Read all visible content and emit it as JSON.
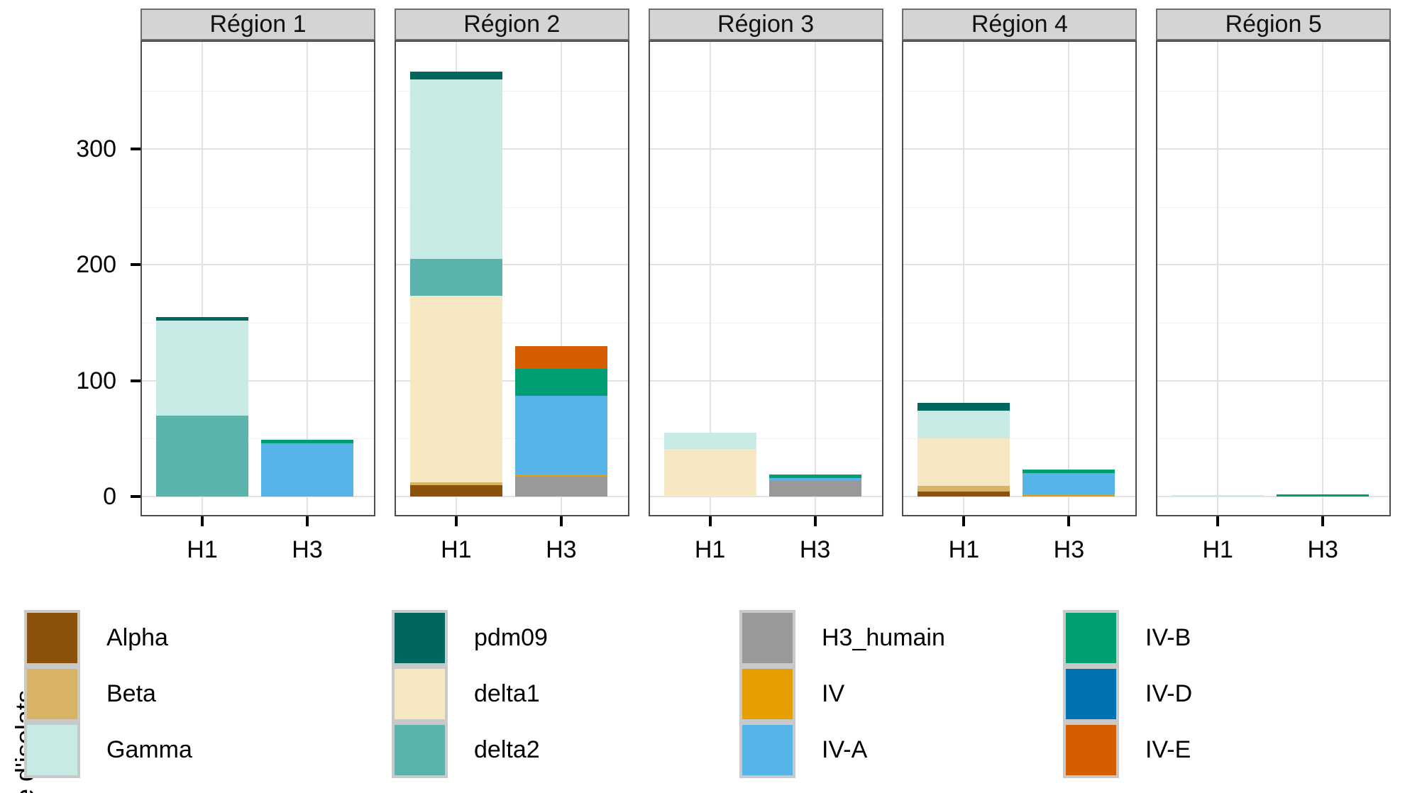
{
  "chart_data": {
    "type": "bar",
    "stacked": true,
    "faceted": true,
    "title": "",
    "y_axis_label": "e d'isolats",
    "legend_position": "bottom",
    "grid": true,
    "categories": [
      "H1",
      "H3"
    ],
    "y_ticks": [
      "0",
      "100",
      "200",
      "300"
    ],
    "y_tick_values": [
      0,
      100,
      200,
      300
    ],
    "y_minor_values": [
      50,
      150,
      250,
      350
    ],
    "ylim": [
      0,
      392
    ],
    "palette": {
      "Alpha": "#8C510A",
      "Beta": "#D8B365",
      "Gamma": "#C7EAE5",
      "pdm09": "#01665E",
      "delta1": "#F6E8C3",
      "delta2": "#5AB4AC",
      "H3_humain": "#999999",
      "IV": "#E69F00",
      "IV-A": "#56B4E9",
      "IV-B": "#009E73",
      "IV-D": "#0072B2",
      "IV-E": "#D55E00"
    },
    "facets": [
      {
        "label": "Région 1",
        "bars": [
          {
            "x": "H1",
            "total": 155,
            "segments": [
              {
                "clade": "delta2",
                "value": 70
              },
              {
                "clade": "Gamma",
                "value": 82
              },
              {
                "clade": "pdm09",
                "value": 3
              }
            ]
          },
          {
            "x": "H3",
            "total": 49,
            "segments": [
              {
                "clade": "IV-A",
                "value": 46
              },
              {
                "clade": "IV-B",
                "value": 3
              }
            ]
          }
        ]
      },
      {
        "label": "Région 2",
        "bars": [
          {
            "x": "H1",
            "total": 367,
            "segments": [
              {
                "clade": "Alpha",
                "value": 10
              },
              {
                "clade": "Beta",
                "value": 2
              },
              {
                "clade": "delta1",
                "value": 161
              },
              {
                "clade": "delta2",
                "value": 32
              },
              {
                "clade": "Gamma",
                "value": 155
              },
              {
                "clade": "pdm09",
                "value": 7
              }
            ]
          },
          {
            "x": "H3",
            "total": 130,
            "segments": [
              {
                "clade": "H3_humain",
                "value": 17
              },
              {
                "clade": "IV",
                "value": 2
              },
              {
                "clade": "IV-A",
                "value": 68
              },
              {
                "clade": "IV-B",
                "value": 23
              },
              {
                "clade": "IV-E",
                "value": 20
              }
            ]
          }
        ]
      },
      {
        "label": "Région 3",
        "bars": [
          {
            "x": "H1",
            "total": 55,
            "segments": [
              {
                "clade": "delta1",
                "value": 41
              },
              {
                "clade": "Gamma",
                "value": 14
              }
            ]
          },
          {
            "x": "H3",
            "total": 19,
            "segments": [
              {
                "clade": "H3_humain",
                "value": 14
              },
              {
                "clade": "IV-A",
                "value": 2
              },
              {
                "clade": "IV-B",
                "value": 3
              }
            ]
          }
        ]
      },
      {
        "label": "Région 4",
        "bars": [
          {
            "x": "H1",
            "total": 81,
            "segments": [
              {
                "clade": "Alpha",
                "value": 4
              },
              {
                "clade": "Beta",
                "value": 5
              },
              {
                "clade": "delta1",
                "value": 41
              },
              {
                "clade": "Gamma",
                "value": 24
              },
              {
                "clade": "pdm09",
                "value": 7
              }
            ]
          },
          {
            "x": "H3",
            "total": 23,
            "segments": [
              {
                "clade": "IV",
                "value": 2
              },
              {
                "clade": "IV-A",
                "value": 18
              },
              {
                "clade": "IV-B",
                "value": 3
              }
            ]
          }
        ]
      },
      {
        "label": "Région 5",
        "bars": [
          {
            "x": "H1",
            "total": 1,
            "segments": [
              {
                "clade": "Gamma",
                "value": 1
              }
            ]
          },
          {
            "x": "H3",
            "total": 2,
            "segments": [
              {
                "clade": "IV-B",
                "value": 2
              }
            ]
          }
        ]
      }
    ],
    "legend": {
      "columns": [
        [
          "Alpha",
          "Beta",
          "Gamma"
        ],
        [
          "pdm09",
          "delta1",
          "delta2"
        ],
        [
          "H3_humain",
          "IV",
          "IV-A"
        ],
        [
          "IV-B",
          "IV-D",
          "IV-E"
        ]
      ]
    }
  }
}
